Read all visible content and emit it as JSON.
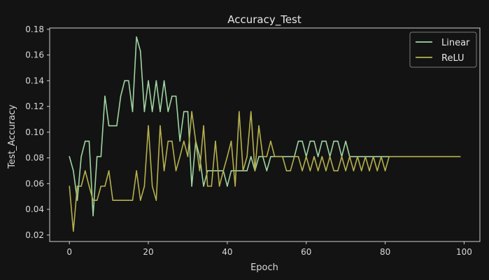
{
  "chart_data": {
    "type": "line",
    "title": "Accuracy_Test",
    "xlabel": "Epoch",
    "ylabel": "Test_Accuracy",
    "xlim": [
      -5,
      104
    ],
    "ylim": [
      0.015,
      0.181
    ],
    "x_ticks": [
      0,
      20,
      40,
      60,
      80,
      100
    ],
    "y_ticks": [
      0.02,
      0.04,
      0.06,
      0.08,
      0.1,
      0.12,
      0.14,
      0.16,
      0.18
    ],
    "grid": false,
    "legend": "top-right",
    "series": [
      {
        "name": "Linear",
        "color": "#9fd4a3",
        "x": [
          0,
          1,
          2,
          3,
          4,
          5,
          6,
          7,
          8,
          9,
          10,
          11,
          12,
          13,
          14,
          15,
          16,
          17,
          18,
          19,
          20,
          21,
          22,
          23,
          24,
          25,
          26,
          27,
          28,
          29,
          30,
          31,
          32,
          33,
          34,
          35,
          36,
          37,
          38,
          39,
          40,
          41,
          42,
          43,
          44,
          45,
          46,
          47,
          48,
          49,
          50,
          51,
          52,
          53,
          54,
          55,
          56,
          57,
          58,
          59,
          60,
          61,
          62,
          63,
          64,
          65,
          66,
          67,
          68,
          69,
          70,
          71,
          72,
          73,
          74,
          75,
          76,
          77,
          78,
          79,
          80,
          81
        ],
        "values": [
          0.081,
          0.07,
          0.047,
          0.081,
          0.093,
          0.093,
          0.035,
          0.081,
          0.081,
          0.128,
          0.105,
          0.105,
          0.105,
          0.128,
          0.14,
          0.14,
          0.116,
          0.174,
          0.163,
          0.116,
          0.14,
          0.116,
          0.14,
          0.116,
          0.14,
          0.116,
          0.128,
          0.128,
          0.093,
          0.116,
          0.116,
          0.058,
          0.093,
          0.081,
          0.058,
          0.07,
          0.07,
          0.07,
          0.07,
          0.07,
          0.058,
          0.07,
          0.07,
          0.07,
          0.07,
          0.07,
          0.081,
          0.07,
          0.081,
          0.081,
          0.07,
          0.081,
          0.081,
          0.081,
          0.081,
          0.081,
          0.081,
          0.081,
          0.093,
          0.093,
          0.081,
          0.093,
          0.093,
          0.081,
          0.093,
          0.093,
          0.081,
          0.093,
          0.093,
          0.081,
          0.093,
          0.081,
          0.081,
          0.081,
          0.081,
          0.081,
          0.081,
          0.081,
          0.081,
          0.081,
          0.081,
          0.081
        ]
      },
      {
        "name": "ReLU",
        "color": "#b5b04e",
        "x": [
          0,
          1,
          2,
          3,
          4,
          5,
          6,
          7,
          8,
          9,
          10,
          11,
          12,
          13,
          14,
          15,
          16,
          17,
          18,
          19,
          20,
          21,
          22,
          23,
          24,
          25,
          26,
          27,
          28,
          29,
          30,
          31,
          32,
          33,
          34,
          35,
          36,
          37,
          38,
          39,
          40,
          41,
          42,
          43,
          44,
          45,
          46,
          47,
          48,
          49,
          50,
          51,
          52,
          53,
          54,
          55,
          56,
          57,
          58,
          59,
          60,
          61,
          62,
          63,
          64,
          65,
          66,
          67,
          68,
          69,
          70,
          71,
          72,
          73,
          74,
          75,
          76,
          77,
          78,
          79,
          80,
          81,
          82,
          83,
          84,
          85,
          86,
          87,
          88,
          89,
          90,
          91,
          92,
          93,
          94,
          95,
          96,
          97,
          98,
          99
        ],
        "values": [
          0.058,
          0.023,
          0.058,
          0.058,
          0.07,
          0.058,
          0.047,
          0.047,
          0.058,
          0.058,
          0.07,
          0.047,
          0.047,
          0.047,
          0.047,
          0.047,
          0.047,
          0.07,
          0.047,
          0.058,
          0.105,
          0.058,
          0.047,
          0.105,
          0.07,
          0.093,
          0.093,
          0.07,
          0.081,
          0.093,
          0.081,
          0.116,
          0.093,
          0.07,
          0.105,
          0.058,
          0.058,
          0.093,
          0.058,
          0.07,
          0.081,
          0.093,
          0.058,
          0.116,
          0.07,
          0.081,
          0.116,
          0.07,
          0.105,
          0.081,
          0.081,
          0.093,
          0.081,
          0.081,
          0.081,
          0.07,
          0.07,
          0.081,
          0.081,
          0.07,
          0.081,
          0.07,
          0.081,
          0.07,
          0.081,
          0.07,
          0.081,
          0.07,
          0.07,
          0.081,
          0.07,
          0.081,
          0.07,
          0.081,
          0.07,
          0.081,
          0.07,
          0.081,
          0.07,
          0.081,
          0.07,
          0.081,
          0.081,
          0.081,
          0.081,
          0.081,
          0.081,
          0.081,
          0.081,
          0.081,
          0.081,
          0.081,
          0.081,
          0.081,
          0.081,
          0.081,
          0.081,
          0.081,
          0.081,
          0.081
        ]
      }
    ]
  }
}
